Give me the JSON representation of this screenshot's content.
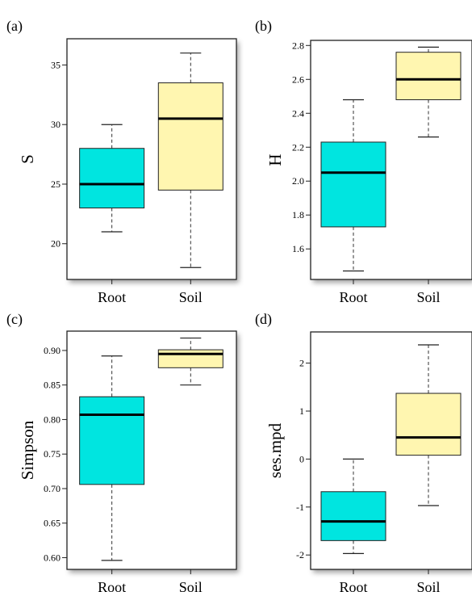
{
  "chart_data": [
    {
      "type": "box",
      "panel_label": "(a)",
      "ylabel": "S",
      "categories": [
        "Root",
        "Soil"
      ],
      "ylim": [
        17,
        37.2
      ],
      "yticks": [
        20,
        25,
        30,
        35
      ],
      "boxes": [
        {
          "name": "Root",
          "whisker_low": 21,
          "q1": 23,
          "median": 25,
          "q3": 28,
          "whisker_high": 30,
          "color": "#00e5e0"
        },
        {
          "name": "Soil",
          "whisker_low": 18,
          "q1": 24.5,
          "median": 30.5,
          "q3": 33.5,
          "whisker_high": 36,
          "color": "#fff6b0"
        }
      ]
    },
    {
      "type": "box",
      "panel_label": "(b)",
      "ylabel": "H",
      "categories": [
        "Root",
        "Soil"
      ],
      "ylim": [
        1.42,
        2.83
      ],
      "yticks": [
        1.6,
        1.8,
        2.0,
        2.2,
        2.4,
        2.6,
        2.8
      ],
      "yticklabels": [
        "1.6",
        "1.8",
        "2.0",
        "2.2",
        "2.4",
        "2.6",
        "2.8"
      ],
      "boxes": [
        {
          "name": "Root",
          "whisker_low": 1.47,
          "q1": 1.73,
          "median": 2.05,
          "q3": 2.23,
          "whisker_high": 2.48,
          "color": "#00e5e0"
        },
        {
          "name": "Soil",
          "whisker_low": 2.26,
          "q1": 2.48,
          "median": 2.6,
          "q3": 2.76,
          "whisker_high": 2.79,
          "color": "#fff6b0"
        }
      ]
    },
    {
      "type": "box",
      "panel_label": "(c)",
      "ylabel": "Simpson",
      "categories": [
        "Root",
        "Soil"
      ],
      "ylim": [
        0.583,
        0.928
      ],
      "yticks": [
        0.6,
        0.65,
        0.7,
        0.75,
        0.8,
        0.85,
        0.9
      ],
      "yticklabels": [
        "0.60",
        "0.65",
        "0.70",
        "0.75",
        "0.80",
        "0.85",
        "0.90"
      ],
      "boxes": [
        {
          "name": "Root",
          "whisker_low": 0.596,
          "q1": 0.706,
          "median": 0.807,
          "q3": 0.833,
          "whisker_high": 0.892,
          "color": "#00e5e0"
        },
        {
          "name": "Soil",
          "whisker_low": 0.85,
          "q1": 0.875,
          "median": 0.895,
          "q3": 0.901,
          "whisker_high": 0.918,
          "color": "#fff6b0"
        }
      ]
    },
    {
      "type": "box",
      "panel_label": "(d)",
      "ylabel": "ses.mpd",
      "categories": [
        "Root",
        "Soil"
      ],
      "ylim": [
        -2.3,
        2.65
      ],
      "yticks": [
        -2,
        -1,
        0,
        1,
        2
      ],
      "yticklabels": [
        "-2",
        "-1",
        "0",
        "1",
        "2"
      ],
      "boxes": [
        {
          "name": "Root",
          "whisker_low": -1.97,
          "q1": -1.7,
          "median": -1.3,
          "q3": -0.68,
          "whisker_high": 0,
          "color": "#00e5e0"
        },
        {
          "name": "Soil",
          "whisker_low": -0.97,
          "q1": 0.08,
          "median": 0.45,
          "q3": 1.37,
          "whisker_high": 2.38,
          "color": "#fff6b0"
        }
      ]
    }
  ]
}
